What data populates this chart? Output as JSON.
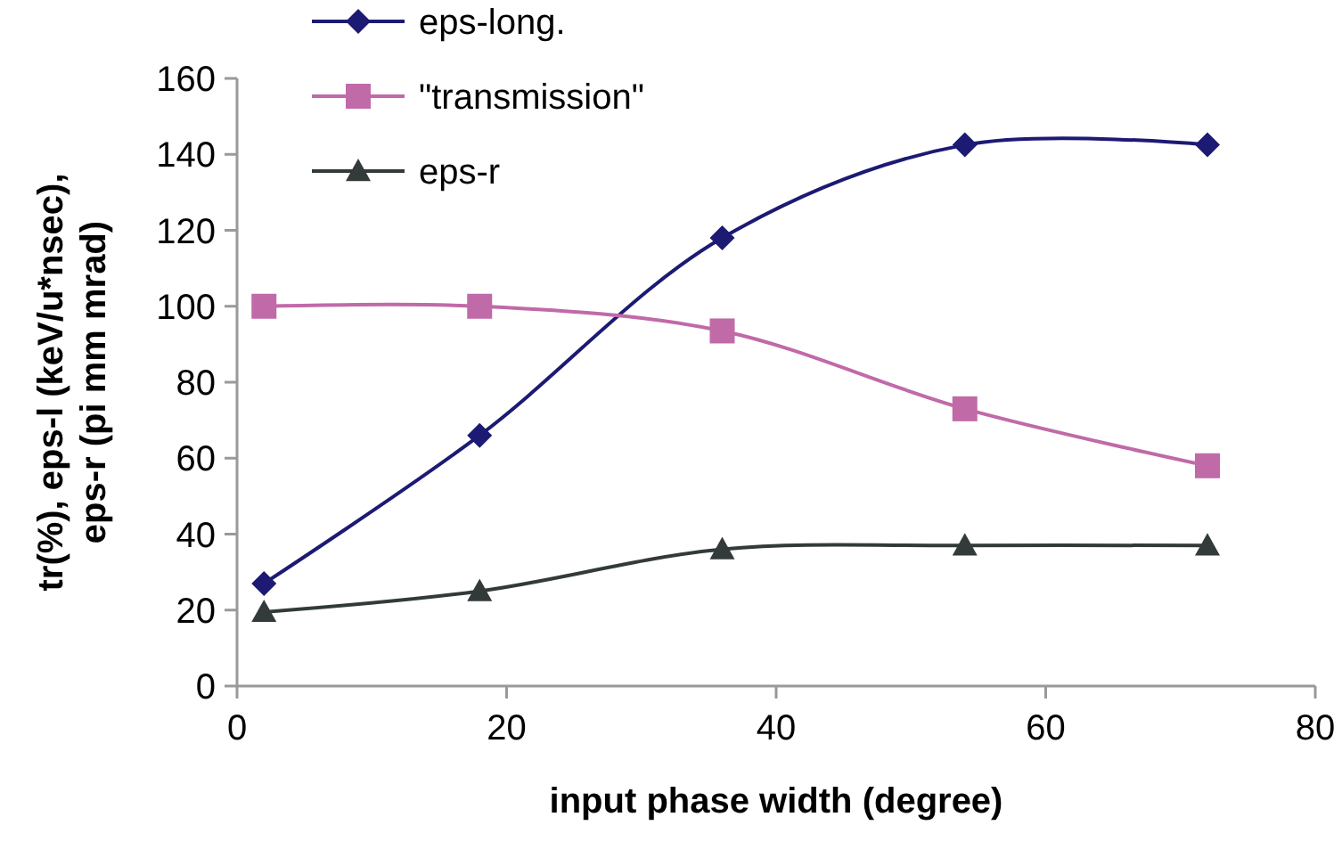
{
  "chart_data": {
    "type": "line",
    "xlabel": "input phase width (degree)",
    "ylabel": "tr(%), eps-l (keV/u*nsec), eps-r (pi mm mrad)",
    "x": [
      2,
      18,
      36,
      54,
      72
    ],
    "series": [
      {
        "name": "eps-long.",
        "color": "#1c1a73",
        "marker": "diamond",
        "values": [
          27,
          66,
          118,
          142.5,
          142.5
        ]
      },
      {
        "name": "\"transmission\"",
        "color": "#c06aa8",
        "marker": "square",
        "values": [
          100,
          100,
          93.5,
          73,
          58
        ]
      },
      {
        "name": "eps-r",
        "color": "#333a3a",
        "marker": "triangle",
        "values": [
          19.5,
          25,
          36,
          37,
          37
        ]
      }
    ],
    "xlim": [
      0,
      80
    ],
    "xticks": [
      0,
      20,
      40,
      60,
      80
    ],
    "ylim": [
      0,
      160
    ],
    "yticks": [
      0,
      20,
      40,
      60,
      80,
      100,
      120,
      140,
      160
    ],
    "grid": false,
    "legend": "top left"
  }
}
